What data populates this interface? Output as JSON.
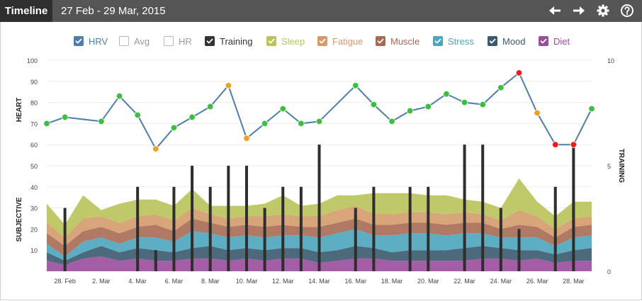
{
  "header": {
    "title": "Timeline",
    "date_range": "27 Feb - 29 Mar, 2015",
    "icons": [
      "back-arrow-icon",
      "forward-arrow-icon",
      "gear-icon",
      "help-icon"
    ]
  },
  "legend": [
    {
      "label": "HRV",
      "color": "#4e7eab",
      "checked": true
    },
    {
      "label": "Avg",
      "color": "#9a9a9a",
      "checked": false
    },
    {
      "label": "HR",
      "color": "#9a9a9a",
      "checked": false
    },
    {
      "label": "Training",
      "color": "#333333",
      "checked": true
    },
    {
      "label": "Sleep",
      "color": "#b9c35a",
      "checked": true
    },
    {
      "label": "Fatigue",
      "color": "#d49a6a",
      "checked": true
    },
    {
      "label": "Muscle",
      "color": "#a66a52",
      "checked": true
    },
    {
      "label": "Stress",
      "color": "#4da5bd",
      "checked": true
    },
    {
      "label": "Mood",
      "color": "#3a5a6e",
      "checked": true
    },
    {
      "label": "Diet",
      "color": "#9b4c9b",
      "checked": true
    }
  ],
  "chart_data": {
    "type": "line",
    "left_axis": {
      "ticks": [
        10,
        20,
        30,
        40,
        50,
        60,
        70,
        80,
        90,
        100
      ],
      "range": [
        0,
        100
      ],
      "labels": [
        "SUBJECTIVE",
        "HEART"
      ]
    },
    "right_axis": {
      "ticks": [
        0,
        5,
        10
      ],
      "range": [
        0,
        10
      ],
      "label": "TRAINING"
    },
    "x_range": [
      0,
      30
    ],
    "x_ticks": [
      {
        "x": 1,
        "label": "28. Feb"
      },
      {
        "x": 3,
        "label": "2. Mar"
      },
      {
        "x": 5,
        "label": "4. Mar"
      },
      {
        "x": 7,
        "label": "6. Mar"
      },
      {
        "x": 9,
        "label": "8. Mar"
      },
      {
        "x": 11,
        "label": "10. Mar"
      },
      {
        "x": 13,
        "label": "12. Mar"
      },
      {
        "x": 15,
        "label": "14. Mar"
      },
      {
        "x": 17,
        "label": "16. Mar"
      },
      {
        "x": 19,
        "label": "18. Mar"
      },
      {
        "x": 21,
        "label": "20. Mar"
      },
      {
        "x": 23,
        "label": "22. Mar"
      },
      {
        "x": 25,
        "label": "24. Mar"
      },
      {
        "x": 27,
        "label": "26. Mar"
      },
      {
        "x": 29,
        "label": "28. Mar"
      }
    ],
    "hrv": {
      "name": "HRV",
      "color": "#4e7eab",
      "points": [
        {
          "x": 0,
          "y": 70,
          "status": "good"
        },
        {
          "x": 1,
          "y": 73,
          "status": "good"
        },
        {
          "x": 3,
          "y": 71,
          "status": "good"
        },
        {
          "x": 4,
          "y": 83,
          "status": "good"
        },
        {
          "x": 5,
          "y": 74,
          "status": "good"
        },
        {
          "x": 6,
          "y": 58,
          "status": "warn"
        },
        {
          "x": 7,
          "y": 68,
          "status": "good"
        },
        {
          "x": 8,
          "y": 73,
          "status": "good"
        },
        {
          "x": 9,
          "y": 78,
          "status": "good"
        },
        {
          "x": 10,
          "y": 88,
          "status": "warn"
        },
        {
          "x": 11,
          "y": 63,
          "status": "warn"
        },
        {
          "x": 12,
          "y": 70,
          "status": "good"
        },
        {
          "x": 13,
          "y": 77,
          "status": "good"
        },
        {
          "x": 14,
          "y": 70,
          "status": "good"
        },
        {
          "x": 15,
          "y": 71,
          "status": "good"
        },
        {
          "x": 17,
          "y": 88,
          "status": "good"
        },
        {
          "x": 18,
          "y": 79,
          "status": "good"
        },
        {
          "x": 19,
          "y": 71,
          "status": "good"
        },
        {
          "x": 20,
          "y": 76,
          "status": "good"
        },
        {
          "x": 21,
          "y": 78,
          "status": "good"
        },
        {
          "x": 22,
          "y": 84,
          "status": "good"
        },
        {
          "x": 23,
          "y": 80,
          "status": "good"
        },
        {
          "x": 24,
          "y": 79,
          "status": "good"
        },
        {
          "x": 25,
          "y": 87,
          "status": "good"
        },
        {
          "x": 26,
          "y": 94,
          "status": "bad"
        },
        {
          "x": 27,
          "y": 75,
          "status": "warn"
        },
        {
          "x": 28,
          "y": 60,
          "status": "bad"
        },
        {
          "x": 29,
          "y": 60,
          "status": "bad"
        },
        {
          "x": 30,
          "y": 77,
          "status": "good"
        }
      ]
    },
    "status_colors": {
      "good": "#3cbf3c",
      "warn": "#f0a020",
      "bad": "#ee1c1c"
    },
    "stacked_areas": {
      "x": [
        0,
        1,
        2,
        3,
        4,
        5,
        6,
        7,
        8,
        9,
        10,
        11,
        12,
        13,
        14,
        15,
        16,
        17,
        18,
        19,
        20,
        21,
        22,
        23,
        24,
        25,
        26,
        27,
        28,
        29,
        30
      ],
      "series": [
        {
          "name": "Diet",
          "color": "#9b4c9b",
          "values": [
            5,
            3,
            6,
            7,
            5,
            6,
            5,
            5,
            6,
            6,
            5,
            6,
            5,
            6,
            6,
            4,
            5,
            6,
            6,
            5,
            5,
            5,
            5,
            5,
            6,
            6,
            5,
            6,
            4,
            5,
            5
          ]
        },
        {
          "name": "Mood",
          "color": "#3a5a6e",
          "values": [
            4,
            2,
            3,
            5,
            4,
            5,
            5,
            4,
            5,
            6,
            5,
            5,
            5,
            5,
            5,
            5,
            5,
            6,
            5,
            4,
            5,
            5,
            5,
            6,
            6,
            5,
            5,
            4,
            4,
            5,
            6
          ]
        },
        {
          "name": "Stress",
          "color": "#4da5bd",
          "values": [
            4,
            2,
            5,
            4,
            4,
            5,
            6,
            5,
            8,
            6,
            6,
            6,
            6,
            6,
            6,
            7,
            8,
            8,
            6,
            8,
            8,
            8,
            7,
            7,
            6,
            5,
            6,
            6,
            4,
            6,
            6
          ]
        },
        {
          "name": "Muscle",
          "color": "#a66a52",
          "values": [
            5,
            5,
            5,
            5,
            5,
            5,
            6,
            5,
            6,
            5,
            5,
            5,
            5,
            5,
            4,
            5,
            5,
            5,
            5,
            5,
            5,
            5,
            5,
            5,
            5,
            4,
            6,
            5,
            4,
            5,
            5
          ]
        },
        {
          "name": "Fatigue",
          "color": "#d49a6a",
          "values": [
            5,
            4,
            6,
            5,
            5,
            5,
            5,
            5,
            5,
            4,
            4,
            4,
            5,
            5,
            5,
            5,
            6,
            6,
            5,
            5,
            5,
            5,
            5,
            5,
            4,
            4,
            7,
            5,
            4,
            4,
            4
          ]
        },
        {
          "name": "Sleep",
          "color": "#b9c35a",
          "values": [
            9,
            6,
            11,
            3,
            9,
            8,
            7,
            7,
            9,
            4,
            6,
            5,
            6,
            9,
            5,
            6,
            7,
            5,
            10,
            10,
            9,
            8,
            9,
            6,
            6,
            6,
            15,
            7,
            6,
            8,
            7
          ]
        }
      ]
    },
    "training": {
      "name": "Training",
      "color": "#2e2e2e",
      "points": [
        {
          "x": 1,
          "y": 3
        },
        {
          "x": 5,
          "y": 4
        },
        {
          "x": 6,
          "y": 1
        },
        {
          "x": 7,
          "y": 4
        },
        {
          "x": 8,
          "y": 5
        },
        {
          "x": 9,
          "y": 4
        },
        {
          "x": 10,
          "y": 5
        },
        {
          "x": 11,
          "y": 5
        },
        {
          "x": 12,
          "y": 3
        },
        {
          "x": 13,
          "y": 4
        },
        {
          "x": 14,
          "y": 4
        },
        {
          "x": 15,
          "y": 6
        },
        {
          "x": 17,
          "y": 3
        },
        {
          "x": 18,
          "y": 4
        },
        {
          "x": 20,
          "y": 4
        },
        {
          "x": 21,
          "y": 4
        },
        {
          "x": 23,
          "y": 6
        },
        {
          "x": 24,
          "y": 6
        },
        {
          "x": 25,
          "y": 3
        },
        {
          "x": 26,
          "y": 2
        },
        {
          "x": 28,
          "y": 4
        },
        {
          "x": 29,
          "y": 6
        }
      ]
    }
  }
}
